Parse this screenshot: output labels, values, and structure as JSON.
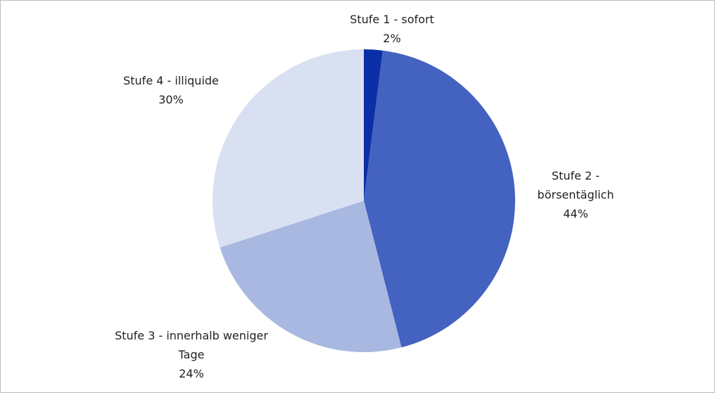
{
  "chart_data": {
    "type": "pie",
    "categories": [
      "Stufe 1 - sofort",
      "Stufe 2 - börsentäglich",
      "Stufe 3 - innerhalb weniger Tage",
      "Stufe 4 - illiquide"
    ],
    "values": [
      2,
      44,
      24,
      30
    ],
    "value_labels": [
      "2%",
      "44%",
      "24%",
      "30%"
    ],
    "colors": [
      "#0b2fa6",
      "#4462c0",
      "#a9b8e1",
      "#d9e0f2"
    ]
  }
}
